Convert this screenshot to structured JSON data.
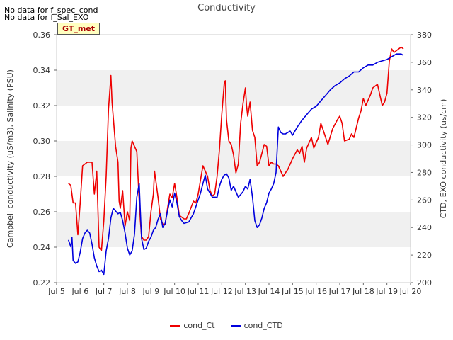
{
  "notes": [
    "No data for f_spec_cond",
    "No data for f_Sal_EXO"
  ],
  "badge": "GT_met",
  "chart_data": {
    "type": "line",
    "title": "Conductivity",
    "xlabel": "",
    "ylabel_left": "Campbell conductivity (uS/m3), Salinity (PSU)",
    "ylabel_right": "CTD, EXO conductivity (us/cm)",
    "x_ticks": [
      "Jul 5",
      "Jul 6",
      "Jul 7",
      "Jul 8",
      "Jul 9",
      "Jul 10",
      "Jul 11",
      "Jul 12",
      "Jul 13",
      "Jul 14",
      "Jul 15",
      "Jul 16",
      "Jul 17",
      "Jul 18",
      "Jul 19",
      "Jul 20"
    ],
    "xlim": [
      5,
      20
    ],
    "ylim_left": [
      0.22,
      0.36
    ],
    "ylim_right": [
      200,
      380
    ],
    "yticks_left": [
      "0.22",
      "0.24",
      "0.26",
      "0.28",
      "0.30",
      "0.32",
      "0.34",
      "0.36"
    ],
    "yticks_right": [
      "200",
      "220",
      "240",
      "260",
      "280",
      "300",
      "320",
      "340",
      "360",
      "380"
    ],
    "grid": "horizontal bands",
    "legend": "bottom-center",
    "series": [
      {
        "name": "cond_Ct",
        "axis": "left",
        "color": "#ee0000",
        "points": [
          [
            5.5,
            0.276
          ],
          [
            5.6,
            0.275
          ],
          [
            5.7,
            0.265
          ],
          [
            5.8,
            0.265
          ],
          [
            5.9,
            0.247
          ],
          [
            6.0,
            0.265
          ],
          [
            6.1,
            0.286
          ],
          [
            6.3,
            0.288
          ],
          [
            6.5,
            0.288
          ],
          [
            6.6,
            0.27
          ],
          [
            6.7,
            0.283
          ],
          [
            6.8,
            0.24
          ],
          [
            6.9,
            0.238
          ],
          [
            7.0,
            0.255
          ],
          [
            7.1,
            0.28
          ],
          [
            7.2,
            0.318
          ],
          [
            7.3,
            0.337
          ],
          [
            7.35,
            0.322
          ],
          [
            7.5,
            0.297
          ],
          [
            7.6,
            0.288
          ],
          [
            7.65,
            0.266
          ],
          [
            7.7,
            0.262
          ],
          [
            7.8,
            0.272
          ],
          [
            7.9,
            0.252
          ],
          [
            8.0,
            0.26
          ],
          [
            8.1,
            0.255
          ],
          [
            8.15,
            0.296
          ],
          [
            8.2,
            0.3
          ],
          [
            8.3,
            0.297
          ],
          [
            8.4,
            0.294
          ],
          [
            8.5,
            0.266
          ],
          [
            8.55,
            0.255
          ],
          [
            8.6,
            0.246
          ],
          [
            8.7,
            0.244
          ],
          [
            8.8,
            0.244
          ],
          [
            8.9,
            0.246
          ],
          [
            9.0,
            0.26
          ],
          [
            9.1,
            0.27
          ],
          [
            9.15,
            0.283
          ],
          [
            9.2,
            0.278
          ],
          [
            9.3,
            0.268
          ],
          [
            9.4,
            0.256
          ],
          [
            9.5,
            0.253
          ],
          [
            9.6,
            0.253
          ],
          [
            9.7,
            0.262
          ],
          [
            9.8,
            0.27
          ],
          [
            9.9,
            0.268
          ],
          [
            10.0,
            0.276
          ],
          [
            10.1,
            0.268
          ],
          [
            10.2,
            0.258
          ],
          [
            10.4,
            0.256
          ],
          [
            10.5,
            0.256
          ],
          [
            10.6,
            0.259
          ],
          [
            10.8,
            0.266
          ],
          [
            10.9,
            0.265
          ],
          [
            11.0,
            0.27
          ],
          [
            11.1,
            0.278
          ],
          [
            11.2,
            0.286
          ],
          [
            11.4,
            0.28
          ],
          [
            11.5,
            0.272
          ],
          [
            11.6,
            0.269
          ],
          [
            11.7,
            0.27
          ],
          [
            11.8,
            0.28
          ],
          [
            11.9,
            0.295
          ],
          [
            12.0,
            0.315
          ],
          [
            12.1,
            0.332
          ],
          [
            12.15,
            0.334
          ],
          [
            12.2,
            0.312
          ],
          [
            12.3,
            0.3
          ],
          [
            12.4,
            0.298
          ],
          [
            12.5,
            0.292
          ],
          [
            12.6,
            0.282
          ],
          [
            12.7,
            0.287
          ],
          [
            12.8,
            0.31
          ],
          [
            12.9,
            0.321
          ],
          [
            13.0,
            0.33
          ],
          [
            13.05,
            0.32
          ],
          [
            13.1,
            0.314
          ],
          [
            13.2,
            0.322
          ],
          [
            13.3,
            0.306
          ],
          [
            13.4,
            0.302
          ],
          [
            13.5,
            0.286
          ],
          [
            13.6,
            0.288
          ],
          [
            13.8,
            0.298
          ],
          [
            13.9,
            0.297
          ],
          [
            14.0,
            0.286
          ],
          [
            14.1,
            0.288
          ],
          [
            14.2,
            0.287
          ],
          [
            14.3,
            0.287
          ],
          [
            14.4,
            0.286
          ],
          [
            14.6,
            0.28
          ],
          [
            14.7,
            0.282
          ],
          [
            14.8,
            0.284
          ],
          [
            15.0,
            0.29
          ],
          [
            15.2,
            0.295
          ],
          [
            15.3,
            0.293
          ],
          [
            15.4,
            0.297
          ],
          [
            15.5,
            0.288
          ],
          [
            15.6,
            0.296
          ],
          [
            15.8,
            0.302
          ],
          [
            15.9,
            0.296
          ],
          [
            16.1,
            0.302
          ],
          [
            16.2,
            0.31
          ],
          [
            16.3,
            0.306
          ],
          [
            16.5,
            0.298
          ],
          [
            16.7,
            0.307
          ],
          [
            16.9,
            0.312
          ],
          [
            17.0,
            0.314
          ],
          [
            17.1,
            0.31
          ],
          [
            17.2,
            0.3
          ],
          [
            17.4,
            0.301
          ],
          [
            17.5,
            0.304
          ],
          [
            17.6,
            0.302
          ],
          [
            17.8,
            0.313
          ],
          [
            17.9,
            0.317
          ],
          [
            18.0,
            0.324
          ],
          [
            18.1,
            0.32
          ],
          [
            18.3,
            0.326
          ],
          [
            18.4,
            0.33
          ],
          [
            18.6,
            0.332
          ],
          [
            18.8,
            0.32
          ],
          [
            18.9,
            0.322
          ],
          [
            19.0,
            0.327
          ],
          [
            19.1,
            0.345
          ],
          [
            19.2,
            0.352
          ],
          [
            19.3,
            0.35
          ],
          [
            19.4,
            0.351
          ],
          [
            19.5,
            0.352
          ],
          [
            19.6,
            0.353
          ],
          [
            19.7,
            0.352
          ]
        ]
      },
      {
        "name": "cond_CTD",
        "axis": "right",
        "color": "#0000dd",
        "points": [
          [
            5.5,
            231
          ],
          [
            5.6,
            226
          ],
          [
            5.65,
            233
          ],
          [
            5.7,
            216
          ],
          [
            5.8,
            214
          ],
          [
            5.9,
            215
          ],
          [
            6.0,
            222
          ],
          [
            6.1,
            232
          ],
          [
            6.2,
            236
          ],
          [
            6.3,
            238
          ],
          [
            6.4,
            236
          ],
          [
            6.5,
            228
          ],
          [
            6.6,
            218
          ],
          [
            6.7,
            212
          ],
          [
            6.8,
            208
          ],
          [
            6.9,
            209
          ],
          [
            7.0,
            206
          ],
          [
            7.1,
            223
          ],
          [
            7.2,
            232
          ],
          [
            7.3,
            247
          ],
          [
            7.4,
            254
          ],
          [
            7.5,
            252
          ],
          [
            7.6,
            250
          ],
          [
            7.7,
            251
          ],
          [
            7.8,
            245
          ],
          [
            7.9,
            236
          ],
          [
            8.0,
            225
          ],
          [
            8.1,
            220
          ],
          [
            8.2,
            223
          ],
          [
            8.3,
            235
          ],
          [
            8.4,
            262
          ],
          [
            8.5,
            272
          ],
          [
            8.55,
            252
          ],
          [
            8.6,
            232
          ],
          [
            8.7,
            224
          ],
          [
            8.8,
            225
          ],
          [
            8.9,
            230
          ],
          [
            9.0,
            233
          ],
          [
            9.1,
            238
          ],
          [
            9.2,
            240
          ],
          [
            9.3,
            246
          ],
          [
            9.4,
            250
          ],
          [
            9.5,
            240
          ],
          [
            9.6,
            243
          ],
          [
            9.7,
            252
          ],
          [
            9.8,
            260
          ],
          [
            9.9,
            255
          ],
          [
            10.0,
            265
          ],
          [
            10.1,
            258
          ],
          [
            10.2,
            248
          ],
          [
            10.3,
            245
          ],
          [
            10.4,
            243
          ],
          [
            10.6,
            244
          ],
          [
            10.8,
            250
          ],
          [
            11.0,
            260
          ],
          [
            11.1,
            265
          ],
          [
            11.2,
            272
          ],
          [
            11.3,
            278
          ],
          [
            11.4,
            268
          ],
          [
            11.6,
            262
          ],
          [
            11.8,
            262
          ],
          [
            11.9,
            270
          ],
          [
            12.0,
            275
          ],
          [
            12.1,
            278
          ],
          [
            12.2,
            279
          ],
          [
            12.3,
            276
          ],
          [
            12.4,
            267
          ],
          [
            12.5,
            270
          ],
          [
            12.6,
            266
          ],
          [
            12.7,
            262
          ],
          [
            12.8,
            264
          ],
          [
            12.9,
            266
          ],
          [
            13.0,
            270
          ],
          [
            13.1,
            268
          ],
          [
            13.2,
            275
          ],
          [
            13.3,
            262
          ],
          [
            13.4,
            245
          ],
          [
            13.5,
            240
          ],
          [
            13.6,
            242
          ],
          [
            13.7,
            247
          ],
          [
            13.8,
            254
          ],
          [
            13.9,
            258
          ],
          [
            14.0,
            265
          ],
          [
            14.1,
            268
          ],
          [
            14.2,
            272
          ],
          [
            14.3,
            280
          ],
          [
            14.4,
            313
          ],
          [
            14.5,
            309
          ],
          [
            14.6,
            308
          ],
          [
            14.7,
            308
          ],
          [
            14.9,
            310
          ],
          [
            15.0,
            307
          ],
          [
            15.2,
            313
          ],
          [
            15.4,
            318
          ],
          [
            15.6,
            322
          ],
          [
            15.8,
            326
          ],
          [
            16.0,
            328
          ],
          [
            16.2,
            332
          ],
          [
            16.4,
            336
          ],
          [
            16.6,
            340
          ],
          [
            16.8,
            343
          ],
          [
            17.0,
            345
          ],
          [
            17.2,
            348
          ],
          [
            17.4,
            350
          ],
          [
            17.6,
            353
          ],
          [
            17.8,
            353
          ],
          [
            18.0,
            356
          ],
          [
            18.2,
            358
          ],
          [
            18.4,
            358
          ],
          [
            18.6,
            360
          ],
          [
            18.8,
            361
          ],
          [
            19.0,
            362
          ],
          [
            19.2,
            364
          ],
          [
            19.4,
            366
          ],
          [
            19.6,
            366
          ],
          [
            19.7,
            365
          ]
        ]
      }
    ]
  }
}
